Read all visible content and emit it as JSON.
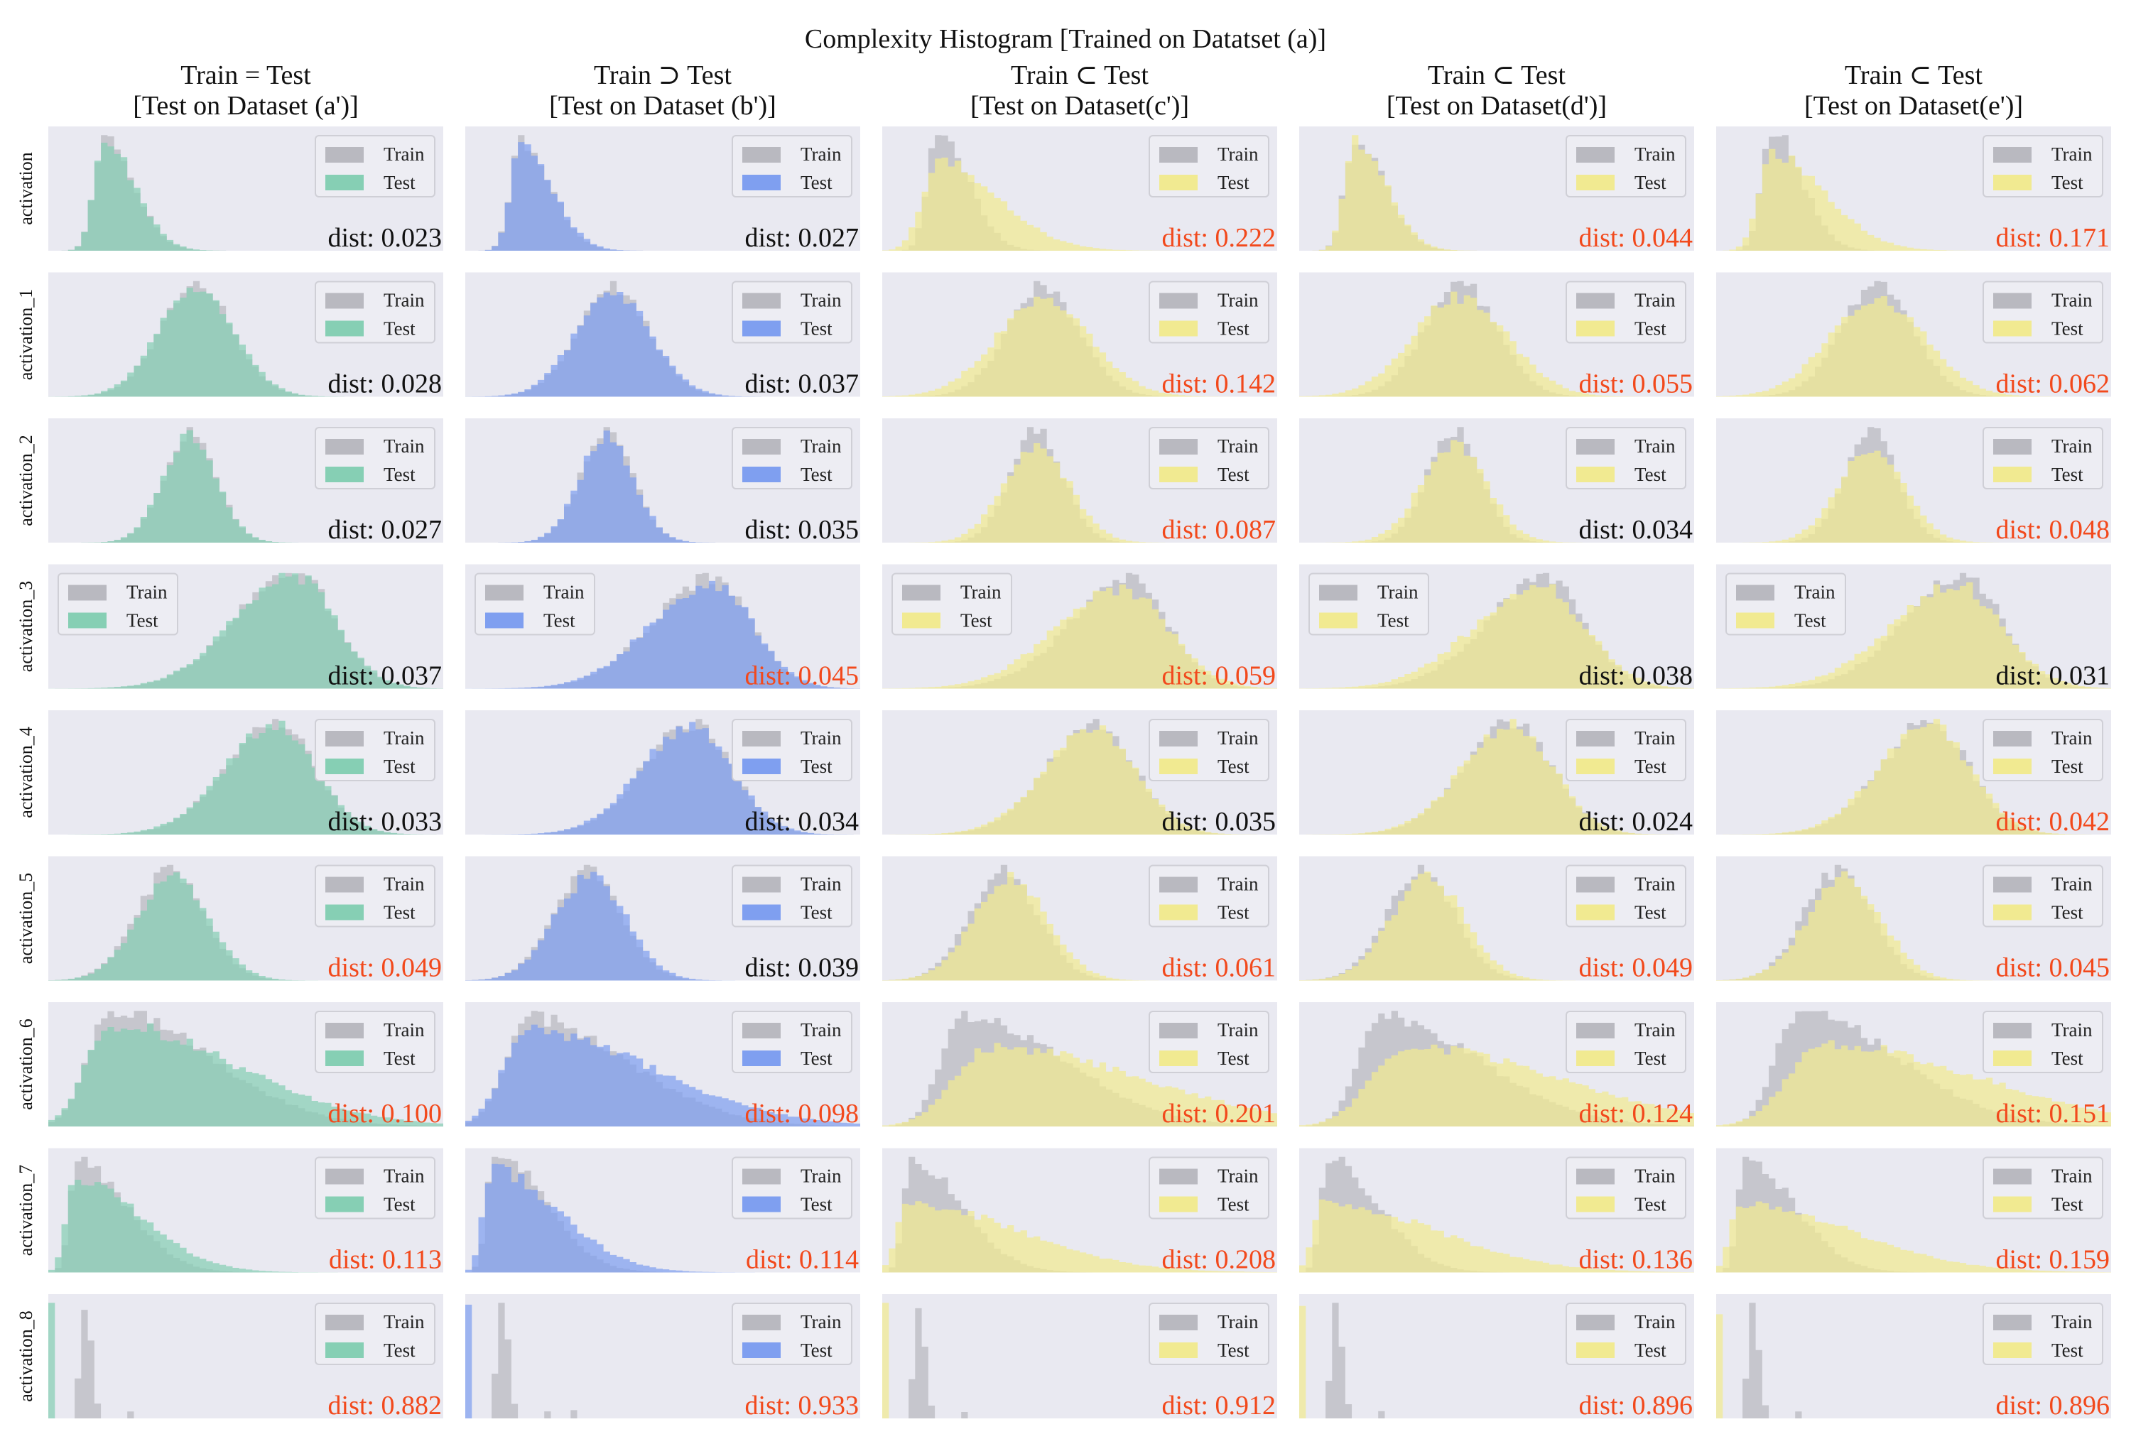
{
  "chart_data": {
    "type": "histogram",
    "title": "Complexity Histogram [Trained on Datatset (a)]",
    "columns": [
      {
        "relation": "Train = Test",
        "test_set": "[Test on Dataset (a')]",
        "test_color": "#86cfb4"
      },
      {
        "relation": "Train ⊃ Test",
        "test_set": "[Test on Dataset (b')]",
        "test_color": "#7f9ff0"
      },
      {
        "relation": "Train ⊂ Test",
        "test_set": "[Test on Dataset(c')]",
        "test_color": "#f1ea91"
      },
      {
        "relation": "Train ⊂ Test",
        "test_set": "[Test on Dataset(d')]",
        "test_color": "#f1ea91"
      },
      {
        "relation": "Train ⊂ Test",
        "test_set": "[Test on Dataset(e')]",
        "test_color": "#f1ea91"
      }
    ],
    "rows": [
      "activation",
      "activation_1",
      "activation_2",
      "activation_3",
      "activation_4",
      "activation_5",
      "activation_6",
      "activation_7",
      "activation_8"
    ],
    "legend": {
      "train": "Train",
      "test": "Test",
      "train_color": "#b9b9c0"
    },
    "dist_prefix": "dist: ",
    "colors": {
      "panel_bg": "#e9e9f1",
      "dist_normal": "#111111",
      "dist_highlight": "#f2491c"
    },
    "legend_positions": [
      "upper right",
      "upper right",
      "upper right",
      "upper left",
      "upper right",
      "upper right",
      "upper right",
      "upper right",
      "upper right"
    ],
    "dist": [
      [
        0.023,
        0.027,
        0.222,
        0.044,
        0.171
      ],
      [
        0.028,
        0.037,
        0.142,
        0.055,
        0.062
      ],
      [
        0.027,
        0.035,
        0.087,
        0.034,
        0.048
      ],
      [
        0.037,
        0.045,
        0.059,
        0.038,
        0.031
      ],
      [
        0.033,
        0.034,
        0.035,
        0.024,
        0.042
      ],
      [
        0.049,
        0.039,
        0.061,
        0.049,
        0.045
      ],
      [
        0.1,
        0.098,
        0.201,
        0.124,
        0.151
      ],
      [
        0.113,
        0.114,
        0.208,
        0.136,
        0.159
      ],
      [
        0.882,
        0.933,
        0.912,
        0.896,
        0.896
      ]
    ],
    "dist_highlighted": [
      [
        false,
        false,
        true,
        true,
        true
      ],
      [
        false,
        false,
        true,
        true,
        true
      ],
      [
        false,
        false,
        true,
        false,
        true
      ],
      [
        false,
        true,
        true,
        false,
        false
      ],
      [
        false,
        false,
        false,
        false,
        true
      ],
      [
        true,
        false,
        true,
        true,
        true
      ],
      [
        true,
        true,
        true,
        true,
        true
      ],
      [
        true,
        true,
        true,
        true,
        true
      ],
      [
        true,
        true,
        true,
        true,
        true
      ]
    ],
    "grid": false,
    "xlabel": "",
    "ylabel": ""
  }
}
